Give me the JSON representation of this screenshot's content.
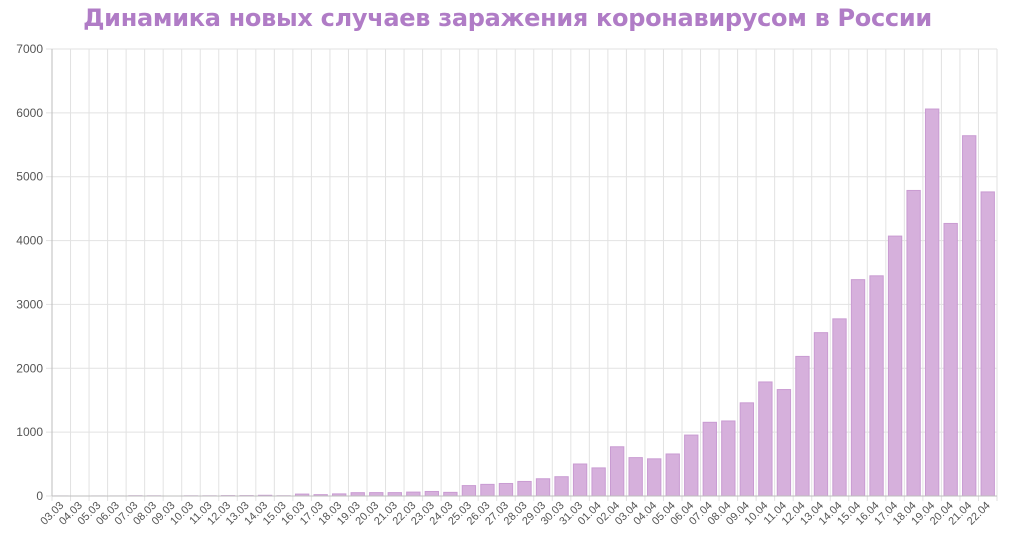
{
  "chart_data": {
    "type": "bar",
    "title": "Динамика новых случаев заражения коронавирусом в России",
    "xlabel": "",
    "ylabel": "",
    "ylim": [
      0,
      7000
    ],
    "yticks": [
      0,
      1000,
      2000,
      3000,
      4000,
      5000,
      6000,
      7000
    ],
    "grid": true,
    "colors": {
      "bar": "#d6b0dc",
      "bar_stroke": "#c99bd2",
      "title": "#b07cc6",
      "grid": "#e2e2e2"
    },
    "categories": [
      "03.03",
      "04.03",
      "05.03",
      "06.03",
      "07.03",
      "08.03",
      "09.03",
      "10.03",
      "11.03",
      "12.03",
      "13.03",
      "14.03",
      "15.03",
      "16.03",
      "17.03",
      "18.03",
      "19.03",
      "20.03",
      "21.03",
      "22.03",
      "23.03",
      "24.03",
      "25.03",
      "26.03",
      "27.03",
      "28.03",
      "29.03",
      "30.03",
      "31.03",
      "01.04",
      "02.04",
      "03.04",
      "04.04",
      "05.04",
      "06.04",
      "07.04",
      "08.04",
      "09.04",
      "10.04",
      "11.04",
      "12.04",
      "13.04",
      "14.04",
      "15.04",
      "16.04",
      "17.04",
      "18.04",
      "19.04",
      "20.04",
      "21.04",
      "22.04"
    ],
    "values": [
      1,
      0,
      1,
      1,
      4,
      3,
      0,
      3,
      3,
      6,
      6,
      11,
      4,
      30,
      21,
      33,
      52,
      53,
      53,
      61,
      71,
      57,
      163,
      182,
      196,
      228,
      270,
      302,
      501,
      440,
      771,
      601,
      582,
      658,
      954,
      1154,
      1175,
      1459,
      1786,
      1667,
      2186,
      2558,
      2774,
      3388,
      3448,
      4070,
      4785,
      6060,
      4268,
      5642,
      4762
    ]
  }
}
